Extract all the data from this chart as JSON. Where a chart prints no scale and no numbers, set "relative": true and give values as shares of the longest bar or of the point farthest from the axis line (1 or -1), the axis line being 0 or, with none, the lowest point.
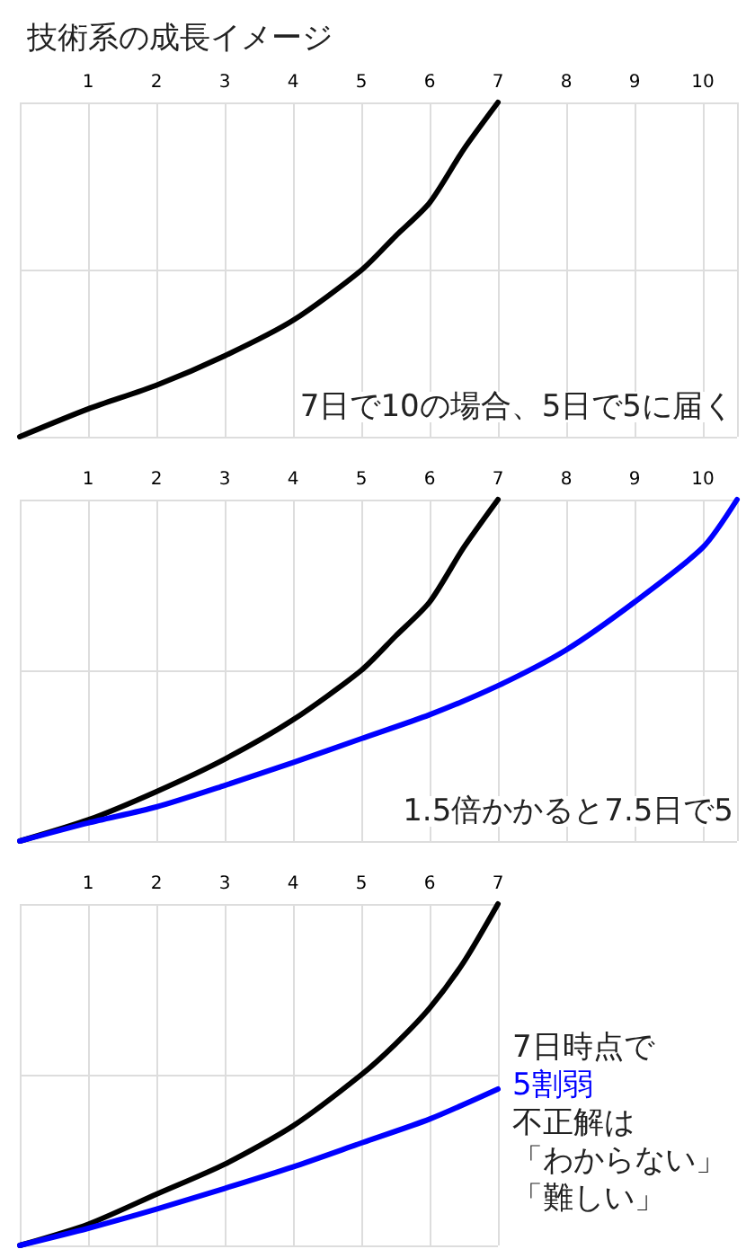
{
  "chart_data": [
    {
      "type": "line",
      "title": "技術系の成長イメージ",
      "relative": true,
      "xlim": [
        0,
        10.5
      ],
      "xticks": [
        1,
        2,
        3,
        4,
        5,
        6,
        7,
        8,
        9,
        10
      ],
      "grid": true,
      "marker": "none",
      "line_style": "solid",
      "series": [
        {
          "color": "#000000",
          "x": [
            0,
            1,
            2,
            3,
            4,
            5,
            5.5,
            6,
            6.5,
            7
          ],
          "values": [
            0,
            0.083,
            0.154,
            0.242,
            0.348,
            0.498,
            0.6,
            0.7,
            0.86,
            1
          ]
        }
      ],
      "annotations": [
        "7日で10の場合、5日で5に届く"
      ]
    },
    {
      "type": "line",
      "relative": true,
      "xlim": [
        0,
        10.5
      ],
      "xticks": [
        1,
        2,
        3,
        4,
        5,
        6,
        7,
        8,
        9,
        10
      ],
      "grid": true,
      "marker": "none",
      "line_style": "solid",
      "series": [
        {
          "color": "#000000",
          "x": [
            0,
            1,
            2,
            3,
            4,
            5,
            5.5,
            6,
            6.5,
            7
          ],
          "values": [
            0,
            0.062,
            0.145,
            0.24,
            0.355,
            0.5,
            0.6,
            0.7,
            0.86,
            1
          ]
        },
        {
          "color": "#0000ff",
          "x": [
            0,
            1,
            2,
            3,
            4,
            5,
            6,
            7,
            8,
            9,
            10,
            10.5
          ],
          "values": [
            0,
            0.053,
            0.1,
            0.163,
            0.23,
            0.3,
            0.37,
            0.455,
            0.56,
            0.7,
            0.86,
            1
          ]
        }
      ],
      "annotations": [
        "1.5倍かかると7.5日で5"
      ]
    },
    {
      "type": "line",
      "relative": true,
      "xlim": [
        0,
        7
      ],
      "xticks": [
        1,
        2,
        3,
        4,
        5,
        6,
        7
      ],
      "grid": true,
      "marker": "none",
      "line_style": "solid",
      "series": [
        {
          "color": "#000000",
          "x": [
            0,
            1,
            2,
            3,
            4,
            5,
            5.5,
            6,
            6.5,
            7
          ],
          "values": [
            0,
            0.062,
            0.15,
            0.238,
            0.35,
            0.5,
            0.59,
            0.695,
            0.83,
            1
          ]
        },
        {
          "color": "#0000ff",
          "x": [
            0,
            1,
            2,
            3,
            4,
            5,
            6,
            7
          ],
          "values": [
            0,
            0.05,
            0.106,
            0.167,
            0.23,
            0.3,
            0.37,
            0.458
          ]
        }
      ],
      "annotations": [
        "7日時点で",
        {
          "text": "5割弱",
          "x": 7,
          "y": 0.458
        },
        "不正解は",
        "「わからない」",
        "「難しい」"
      ]
    }
  ]
}
